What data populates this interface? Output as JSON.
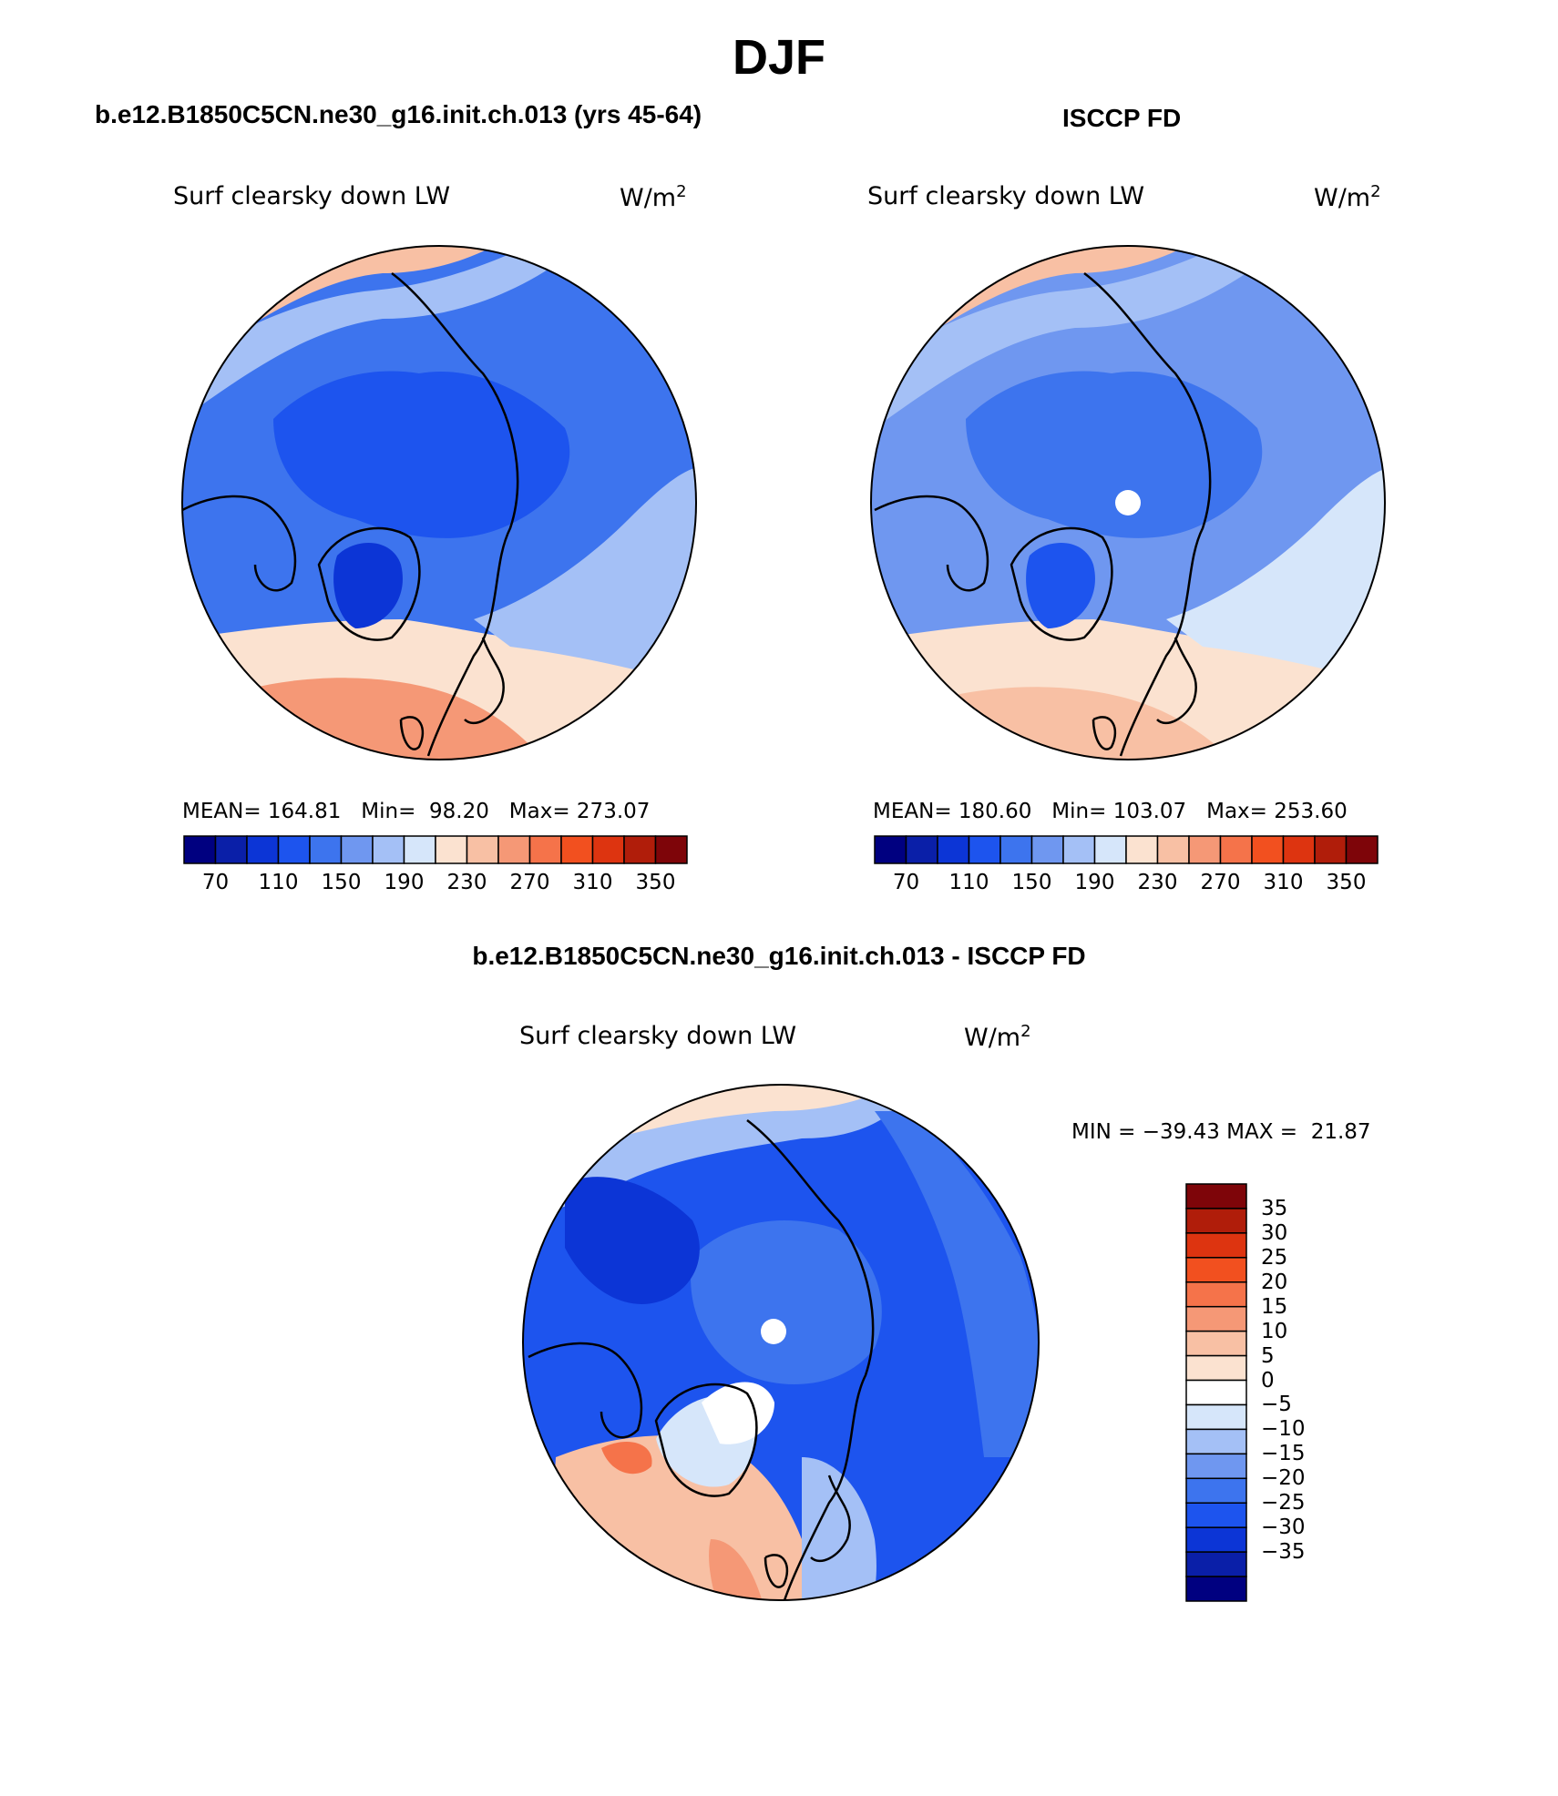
{
  "figure": {
    "title": "DJF",
    "panels": [
      {
        "id": "model",
        "heading": "b.e12.B1850C5CN.ne30_g16.init.ch.013 (yrs 45-64)",
        "variable": "Surf clearsky down LW",
        "units": "W/m",
        "units_sup": "2",
        "stats": "MEAN= 164.81   Min=  98.20   Max= 273.07"
      },
      {
        "id": "obs",
        "heading": "ISCCP FD",
        "variable": "Surf clearsky down LW",
        "units": "W/m",
        "units_sup": "2",
        "stats": "MEAN= 180.60   Min= 103.07   Max= 253.60"
      },
      {
        "id": "diff",
        "heading": "b.e12.B1850C5CN.ne30_g16.init.ch.013 - ISCCP FD",
        "variable": "Surf clearsky down LW",
        "units": "W/m",
        "units_sup": "2",
        "stats": "MIN = −39.43 MAX =  21.87"
      }
    ]
  },
  "colorbar_abs": {
    "colors": [
      "#000080",
      "#0a1fa8",
      "#0c35d6",
      "#1d54ee",
      "#3d74ee",
      "#6f97f0",
      "#a4c0f6",
      "#d6e6fa",
      "#fbe2d0",
      "#f8c0a4",
      "#f59876",
      "#f5734a",
      "#f2501f",
      "#dd3410",
      "#b01d0a",
      "#7e0509"
    ],
    "tick_labels": [
      "70",
      "110",
      "150",
      "190",
      "230",
      "270",
      "310",
      "350"
    ]
  },
  "colorbar_diff": {
    "colors": [
      "#7e0509",
      "#b01d0a",
      "#dd3410",
      "#f2501f",
      "#f5734a",
      "#f59876",
      "#f8c0a4",
      "#fbe2d0",
      "#ffffff",
      "#d6e6fa",
      "#a4c0f6",
      "#6f97f0",
      "#3d74ee",
      "#1d54ee",
      "#0c35d6",
      "#0a1fa8",
      "#000080"
    ],
    "tick_labels": [
      "35",
      "30",
      "25",
      "20",
      "15",
      "10",
      "5",
      "0",
      "−5",
      "−10",
      "−15",
      "−20",
      "−25",
      "−30",
      "−35"
    ]
  }
}
